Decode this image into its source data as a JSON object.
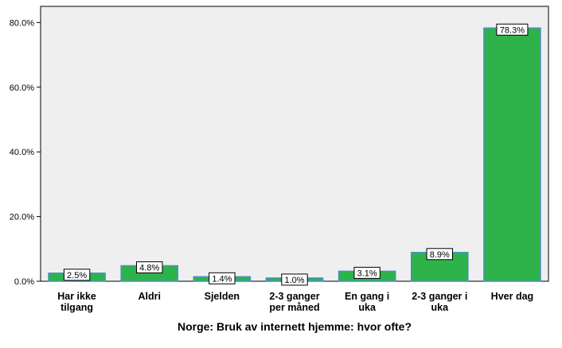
{
  "chart_data": {
    "type": "bar",
    "title": "",
    "xlabel": "Norge: Bruk av internett hjemme: hvor ofte?",
    "ylabel": "",
    "ylim": [
      0,
      85
    ],
    "yticks": [
      0,
      20,
      40,
      60,
      80
    ],
    "ytick_labels": [
      "0.0%",
      "20.0%",
      "40.0%",
      "60.0%",
      "80.0%"
    ],
    "categories": [
      [
        "Har ikke",
        "tilgang"
      ],
      [
        "Aldri"
      ],
      [
        "Sjelden"
      ],
      [
        "2-3 ganger",
        "per måned"
      ],
      [
        "En gang i",
        "uka"
      ],
      [
        "2-3 ganger i",
        "uka"
      ],
      [
        "Hver dag"
      ]
    ],
    "values": [
      2.5,
      4.8,
      1.4,
      1.0,
      3.1,
      8.9,
      78.3
    ],
    "value_labels": [
      "2.5%",
      "4.8%",
      "1.4%",
      "1.0%",
      "3.1%",
      "8.9%",
      "78.3%"
    ],
    "colors": {
      "bar_fill": "#2db34a",
      "bar_stroke": "#4a8fc4",
      "plot_bg": "#efefef"
    }
  }
}
